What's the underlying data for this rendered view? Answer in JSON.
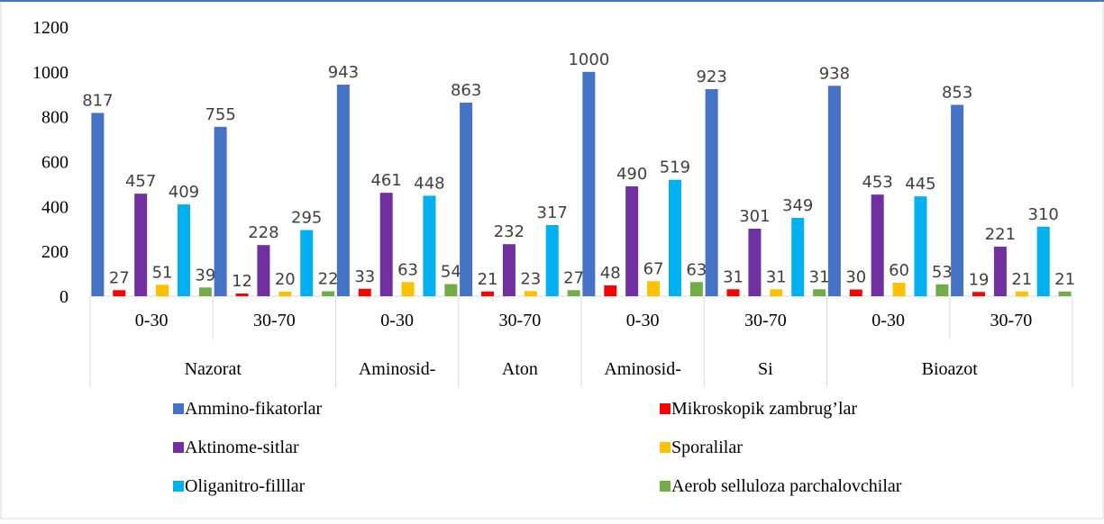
{
  "chart_data": {
    "type": "bar",
    "ylim": [
      0,
      1200
    ],
    "y_ticks": [
      "0",
      "200",
      "400",
      "600",
      "800",
      "1000",
      "1200"
    ],
    "y_tick_values": [
      0,
      200,
      400,
      600,
      800,
      1000,
      1200
    ],
    "grid": false,
    "legend_position": "bottom",
    "categories": [
      "0-30",
      "30-70",
      "0-30",
      "30-70",
      "0-30",
      "30-70",
      "0-30",
      "30-70"
    ],
    "groups": [
      {
        "label": "Nazorat",
        "span": 2
      },
      {
        "label": "Aminosid-",
        "span": 1
      },
      {
        "label": "Aton",
        "span": 1
      },
      {
        "label": "Aminosid-",
        "span": 1
      },
      {
        "label": "Si",
        "span": 1
      },
      {
        "label": "Bioazot",
        "span": 2
      }
    ],
    "series": [
      {
        "name": "Ammino-fikatorlar",
        "color": "#4472C4",
        "values": [
          817,
          755,
          943,
          863,
          1000,
          923,
          938,
          853
        ]
      },
      {
        "name": "Mikroskopik zambrug’lar",
        "color": "#FF0000",
        "values": [
          27,
          12,
          33,
          21,
          48,
          31,
          30,
          19
        ]
      },
      {
        "name": "Aktinome-sitlar",
        "color": "#7030A0",
        "values": [
          457,
          228,
          461,
          232,
          490,
          301,
          453,
          221
        ]
      },
      {
        "name": "Sporalilar",
        "color": "#FFC000",
        "values": [
          51,
          20,
          63,
          23,
          67,
          31,
          60,
          21
        ]
      },
      {
        "name": "Oliganitro-filllar",
        "color": "#00B0F0",
        "values": [
          409,
          295,
          448,
          317,
          519,
          349,
          445,
          310
        ]
      },
      {
        "name": "Aerob selluloza parchalovchilar",
        "color": "#70AD47",
        "values": [
          39,
          22,
          54,
          27,
          63,
          31,
          53,
          21
        ]
      }
    ]
  }
}
